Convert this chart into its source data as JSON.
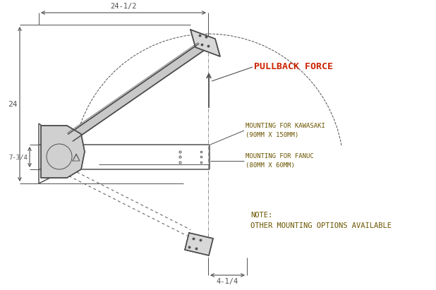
{
  "bg_color": "#ffffff",
  "line_color": "#505050",
  "dim_color": "#505050",
  "label_color": "#6b5500",
  "pullback_color": "#cc2200",
  "pullback_text": "PULLBACK FORCE",
  "kawasaki_text": "MOUNTING FOR KAWASAKI\n(90MM X 150MM)",
  "fanuc_text": "MOUNTING FOR FANUC\n(80MM X 60MM)",
  "note_text": "NOTE:\nOTHER MOUNTING OPTIONS AVAILABLE",
  "dim_24half": "24-1/2",
  "dim_24": "24",
  "dim_7_3_4": "7-3/4",
  "dim_4_1_4": "4-1/4",
  "lw_main": 1.1,
  "lw_thin": 0.7,
  "lw_dash": 0.7
}
